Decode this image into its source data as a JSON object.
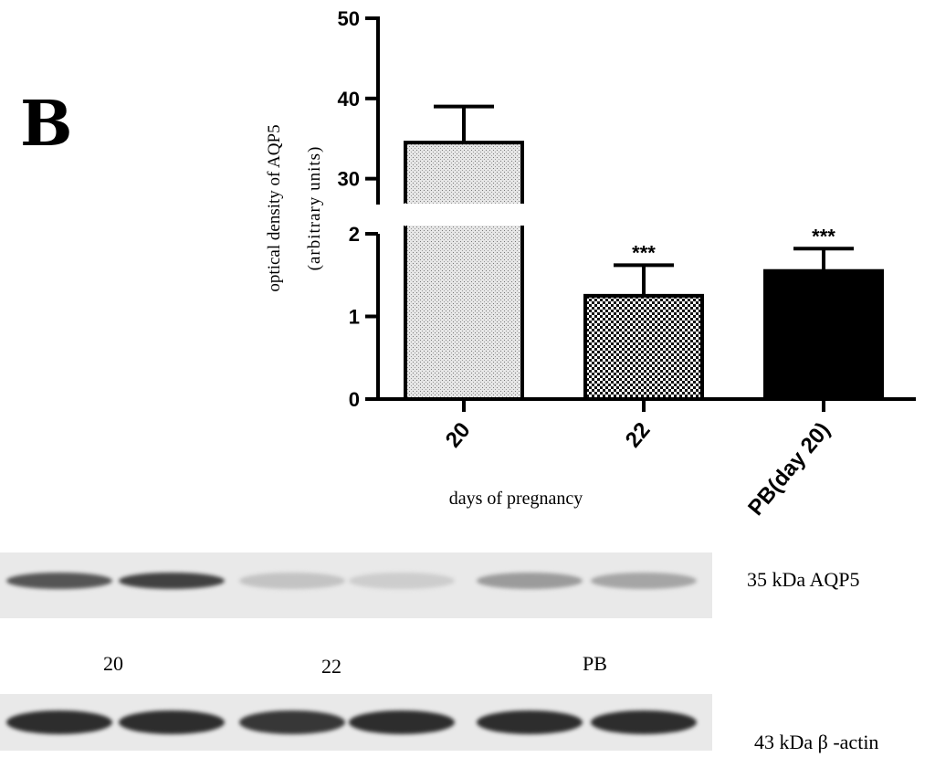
{
  "panel_letter": "B",
  "chart_data": {
    "type": "bar",
    "categories": [
      "20",
      "22",
      "PB(day 20)"
    ],
    "values": [
      34.5,
      1.25,
      1.55
    ],
    "errors": [
      4.5,
      0.37,
      0.27
    ],
    "significance": [
      "",
      "***",
      "***"
    ],
    "ylabel_line1": "optical density of AQP5",
    "ylabel_line2": "(arbitrary units)",
    "xlabel": "days of pregnancy",
    "y_lower_ticks": [
      "0",
      "1",
      "2"
    ],
    "y_upper_ticks": [
      "30",
      "40",
      "50"
    ],
    "y_lower_range": [
      0,
      2
    ],
    "y_upper_range": [
      27,
      50
    ],
    "y_break": true,
    "fills": [
      "light-dots",
      "checker",
      "solid-black"
    ]
  },
  "blot": {
    "aqp5_label": "35 kDa AQP5",
    "actin_label": "43 kDa β -actin",
    "lane_group_labels": [
      "20",
      "22",
      "PB"
    ],
    "aqp5_band_intensity": [
      0.75,
      0.85,
      0.2,
      0.15,
      0.4,
      0.35
    ],
    "actin_band_intensity": [
      0.95,
      0.95,
      0.9,
      0.95,
      0.95,
      0.95
    ]
  }
}
